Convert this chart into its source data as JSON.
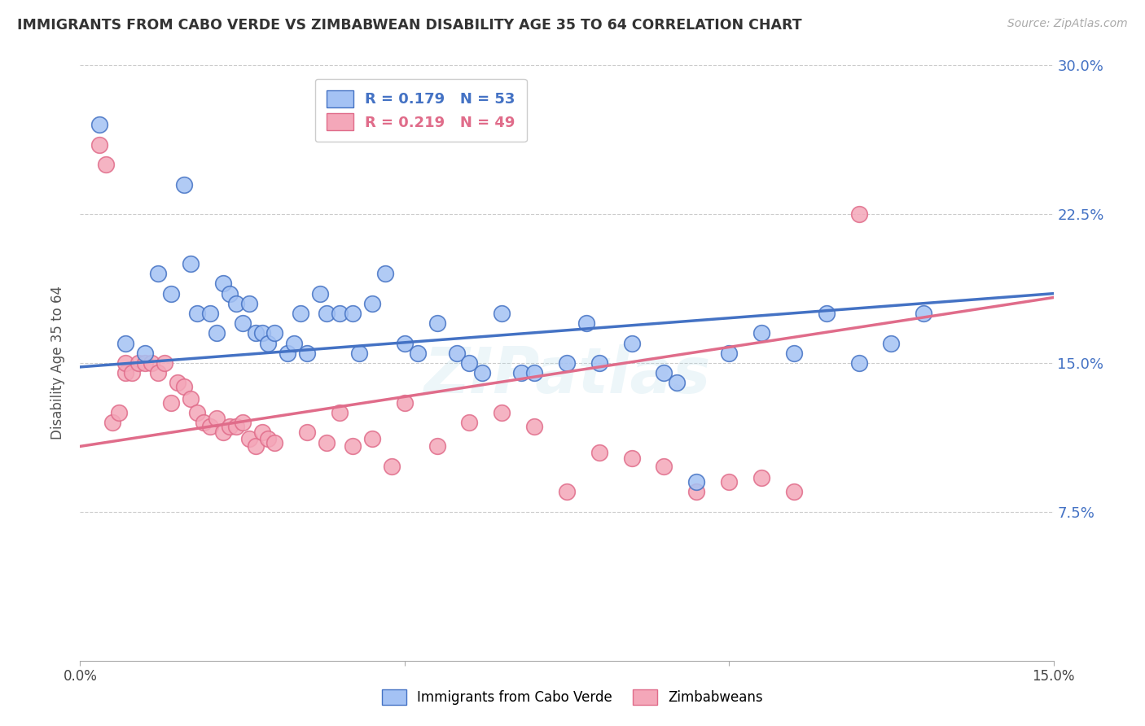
{
  "title": "IMMIGRANTS FROM CABO VERDE VS ZIMBABWEAN DISABILITY AGE 35 TO 64 CORRELATION CHART",
  "source": "Source: ZipAtlas.com",
  "ylabel": "Disability Age 35 to 64",
  "x_min": 0.0,
  "x_max": 0.15,
  "y_min": 0.0,
  "y_max": 0.3,
  "blue_color": "#a4c2f4",
  "pink_color": "#f4a7b9",
  "line_blue_color": "#4472c4",
  "line_pink_color": "#e06c8a",
  "legend_entry1_label": "R = 0.179   N = 53",
  "legend_entry2_label": "R = 0.219   N = 49",
  "watermark_text": "ZIPatlas",
  "cabo_verde_x": [
    0.003,
    0.007,
    0.01,
    0.012,
    0.014,
    0.016,
    0.017,
    0.018,
    0.02,
    0.021,
    0.022,
    0.023,
    0.024,
    0.025,
    0.026,
    0.027,
    0.028,
    0.029,
    0.03,
    0.032,
    0.033,
    0.034,
    0.035,
    0.037,
    0.038,
    0.04,
    0.042,
    0.043,
    0.045,
    0.047,
    0.05,
    0.052,
    0.055,
    0.058,
    0.06,
    0.062,
    0.065,
    0.068,
    0.07,
    0.075,
    0.078,
    0.08,
    0.085,
    0.09,
    0.092,
    0.095,
    0.1,
    0.105,
    0.11,
    0.115,
    0.12,
    0.125,
    0.13
  ],
  "cabo_verde_y": [
    0.27,
    0.16,
    0.155,
    0.195,
    0.185,
    0.24,
    0.2,
    0.175,
    0.175,
    0.165,
    0.19,
    0.185,
    0.18,
    0.17,
    0.18,
    0.165,
    0.165,
    0.16,
    0.165,
    0.155,
    0.16,
    0.175,
    0.155,
    0.185,
    0.175,
    0.175,
    0.175,
    0.155,
    0.18,
    0.195,
    0.16,
    0.155,
    0.17,
    0.155,
    0.15,
    0.145,
    0.175,
    0.145,
    0.145,
    0.15,
    0.17,
    0.15,
    0.16,
    0.145,
    0.14,
    0.09,
    0.155,
    0.165,
    0.155,
    0.175,
    0.15,
    0.16,
    0.175
  ],
  "zimbabwean_x": [
    0.003,
    0.004,
    0.005,
    0.006,
    0.007,
    0.007,
    0.008,
    0.009,
    0.01,
    0.011,
    0.012,
    0.013,
    0.014,
    0.015,
    0.016,
    0.017,
    0.018,
    0.019,
    0.02,
    0.021,
    0.022,
    0.023,
    0.024,
    0.025,
    0.026,
    0.027,
    0.028,
    0.029,
    0.03,
    0.035,
    0.038,
    0.04,
    0.042,
    0.045,
    0.048,
    0.05,
    0.055,
    0.06,
    0.065,
    0.07,
    0.075,
    0.08,
    0.085,
    0.09,
    0.095,
    0.1,
    0.105,
    0.11,
    0.12
  ],
  "zimbabwean_y": [
    0.26,
    0.25,
    0.12,
    0.125,
    0.145,
    0.15,
    0.145,
    0.15,
    0.15,
    0.15,
    0.145,
    0.15,
    0.13,
    0.14,
    0.138,
    0.132,
    0.125,
    0.12,
    0.118,
    0.122,
    0.115,
    0.118,
    0.118,
    0.12,
    0.112,
    0.108,
    0.115,
    0.112,
    0.11,
    0.115,
    0.11,
    0.125,
    0.108,
    0.112,
    0.098,
    0.13,
    0.108,
    0.12,
    0.125,
    0.118,
    0.085,
    0.105,
    0.102,
    0.098,
    0.085,
    0.09,
    0.092,
    0.085,
    0.225
  ],
  "blue_line_x0": 0.0,
  "blue_line_y0": 0.148,
  "blue_line_x1": 0.15,
  "blue_line_y1": 0.185,
  "pink_line_x0": 0.0,
  "pink_line_y0": 0.108,
  "pink_line_x1": 0.15,
  "pink_line_y1": 0.183
}
